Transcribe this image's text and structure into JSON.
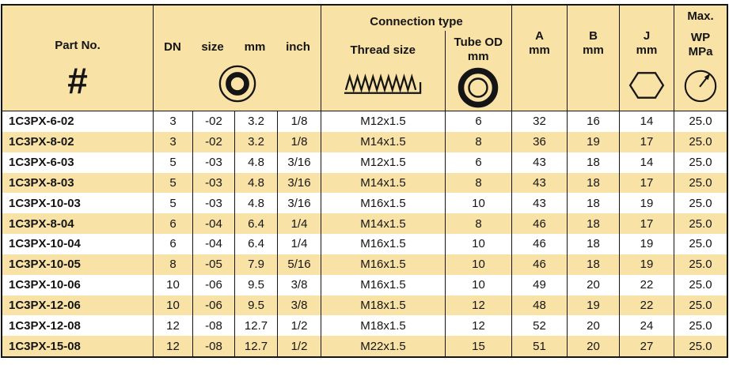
{
  "colors": {
    "band": "#F9E2A6",
    "grid": "#151515",
    "row_default": "#FFFFFF",
    "text": "#151515"
  },
  "header": {
    "part_no": "Part No.",
    "hash": "#",
    "dn": "DN",
    "size": "size",
    "mm": "mm",
    "inch": "inch",
    "connection_type": "Connection type",
    "thread_size": "Thread size",
    "tube_od": "Tube OD",
    "tube_od_unit": "mm",
    "a": "A",
    "a_unit": "mm",
    "b": "B",
    "b_unit": "mm",
    "j": "J",
    "j_unit": "mm",
    "max": "Max.",
    "wp": "WP",
    "mpa": "MPa"
  },
  "icons": {
    "part_no": "hash-icon",
    "size_group": "tube-cross-section-icon",
    "thread": "thread-profile-icon",
    "tube_od": "tube-od-icon",
    "j": "hex-icon",
    "wp": "pressure-gauge-icon"
  },
  "table": {
    "columns": [
      "Part No.",
      "DN",
      "size",
      "mm",
      "inch",
      "Thread size",
      "Tube OD mm",
      "A mm",
      "B mm",
      "J mm",
      "Max. WP MPa"
    ],
    "rows": [
      [
        "1C3PX-6-02",
        "3",
        "-02",
        "3.2",
        "1/8",
        "M12x1.5",
        "6",
        "32",
        "16",
        "14",
        "25.0"
      ],
      [
        "1C3PX-8-02",
        "3",
        "-02",
        "3.2",
        "1/8",
        "M14x1.5",
        "8",
        "36",
        "19",
        "17",
        "25.0"
      ],
      [
        "1C3PX-6-03",
        "5",
        "-03",
        "4.8",
        "3/16",
        "M12x1.5",
        "6",
        "43",
        "18",
        "14",
        "25.0"
      ],
      [
        "1C3PX-8-03",
        "5",
        "-03",
        "4.8",
        "3/16",
        "M14x1.5",
        "8",
        "43",
        "18",
        "17",
        "25.0"
      ],
      [
        "1C3PX-10-03",
        "5",
        "-03",
        "4.8",
        "3/16",
        "M16x1.5",
        "10",
        "43",
        "18",
        "19",
        "25.0"
      ],
      [
        "1C3PX-8-04",
        "6",
        "-04",
        "6.4",
        "1/4",
        "M14x1.5",
        "8",
        "46",
        "18",
        "17",
        "25.0"
      ],
      [
        "1C3PX-10-04",
        "6",
        "-04",
        "6.4",
        "1/4",
        "M16x1.5",
        "10",
        "46",
        "18",
        "19",
        "25.0"
      ],
      [
        "1C3PX-10-05",
        "8",
        "-05",
        "7.9",
        "5/16",
        "M16x1.5",
        "10",
        "46",
        "18",
        "19",
        "25.0"
      ],
      [
        "1C3PX-10-06",
        "10",
        "-06",
        "9.5",
        "3/8",
        "M16x1.5",
        "10",
        "49",
        "20",
        "22",
        "25.0"
      ],
      [
        "1C3PX-12-06",
        "10",
        "-06",
        "9.5",
        "3/8",
        "M18x1.5",
        "12",
        "48",
        "19",
        "22",
        "25.0"
      ],
      [
        "1C3PX-12-08",
        "12",
        "-08",
        "12.7",
        "1/2",
        "M18x1.5",
        "12",
        "52",
        "20",
        "24",
        "25.0"
      ],
      [
        "1C3PX-15-08",
        "12",
        "-08",
        "12.7",
        "1/2",
        "M22x1.5",
        "15",
        "51",
        "20",
        "27",
        "25.0"
      ]
    ]
  }
}
